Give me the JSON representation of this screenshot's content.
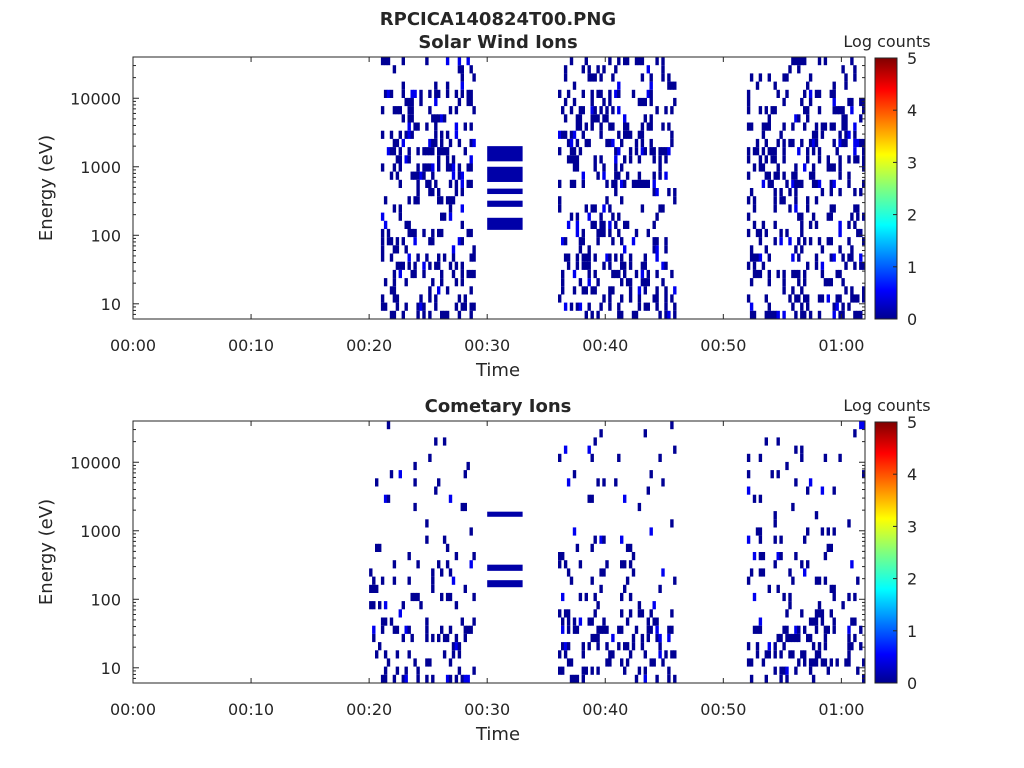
{
  "figure": {
    "title": "RPCICA140824T00.PNG"
  },
  "chart_data": [
    {
      "type": "heatmap",
      "title": "Solar Wind Ions",
      "xlabel": "Time",
      "ylabel": "Energy (eV)",
      "y_scale": "log",
      "ylim": [
        6,
        40000
      ],
      "y_ticks": [
        {
          "value": 10,
          "label": "10"
        },
        {
          "value": 100,
          "label": "100"
        },
        {
          "value": 1000,
          "label": "1000"
        },
        {
          "value": 10000,
          "label": "10000"
        }
      ],
      "xlim": [
        "00:00",
        "01:02"
      ],
      "x_ticks": [
        "00:00",
        "00:10",
        "00:20",
        "00:30",
        "00:40",
        "00:50",
        "01:00"
      ],
      "colorbar": {
        "label": "Log counts",
        "range": [
          0,
          5
        ],
        "ticks": [
          "0",
          "1",
          "2",
          "3",
          "4",
          "5"
        ]
      },
      "active_intervals": [
        [
          "00:21",
          "00:29"
        ],
        [
          "00:36",
          "00:46"
        ],
        [
          "00:52",
          "01:02"
        ]
      ],
      "bands": [
        {
          "t_start": "00:30",
          "t_end": "00:33",
          "e_low": 1200,
          "e_high": 2000,
          "log_counts": 0.2
        },
        {
          "t_start": "00:30",
          "t_end": "00:33",
          "e_low": 600,
          "e_high": 1000,
          "log_counts": 0.2
        },
        {
          "t_start": "00:30",
          "t_end": "00:33",
          "e_low": 400,
          "e_high": 480,
          "log_counts": 0.2
        },
        {
          "t_start": "00:30",
          "t_end": "00:33",
          "e_low": 260,
          "e_high": 320,
          "log_counts": 0.2
        },
        {
          "t_start": "00:30",
          "t_end": "00:33",
          "e_low": 120,
          "e_high": 180,
          "log_counts": 0.2
        }
      ]
    },
    {
      "type": "heatmap",
      "title": "Cometary Ions",
      "xlabel": "Time",
      "ylabel": "Energy (eV)",
      "y_scale": "log",
      "ylim": [
        6,
        40000
      ],
      "y_ticks": [
        {
          "value": 10,
          "label": "10"
        },
        {
          "value": 100,
          "label": "100"
        },
        {
          "value": 1000,
          "label": "1000"
        },
        {
          "value": 10000,
          "label": "10000"
        }
      ],
      "xlim": [
        "00:00",
        "01:02"
      ],
      "x_ticks": [
        "00:00",
        "00:10",
        "00:20",
        "00:30",
        "00:40",
        "00:50",
        "01:00"
      ],
      "colorbar": {
        "label": "Log counts",
        "range": [
          0,
          5
        ],
        "ticks": [
          "0",
          "1",
          "2",
          "3",
          "4",
          "5"
        ]
      },
      "active_intervals": [
        [
          "00:20",
          "00:29"
        ],
        [
          "00:36",
          "00:46"
        ],
        [
          "00:52",
          "01:02"
        ]
      ],
      "bands": [
        {
          "t_start": "00:30",
          "t_end": "00:33",
          "e_low": 1600,
          "e_high": 1900,
          "log_counts": 0.2
        },
        {
          "t_start": "00:30",
          "t_end": "00:33",
          "e_low": 260,
          "e_high": 320,
          "log_counts": 0.2
        },
        {
          "t_start": "00:30",
          "t_end": "00:33",
          "e_low": 150,
          "e_high": 190,
          "log_counts": 0.2
        }
      ]
    }
  ]
}
